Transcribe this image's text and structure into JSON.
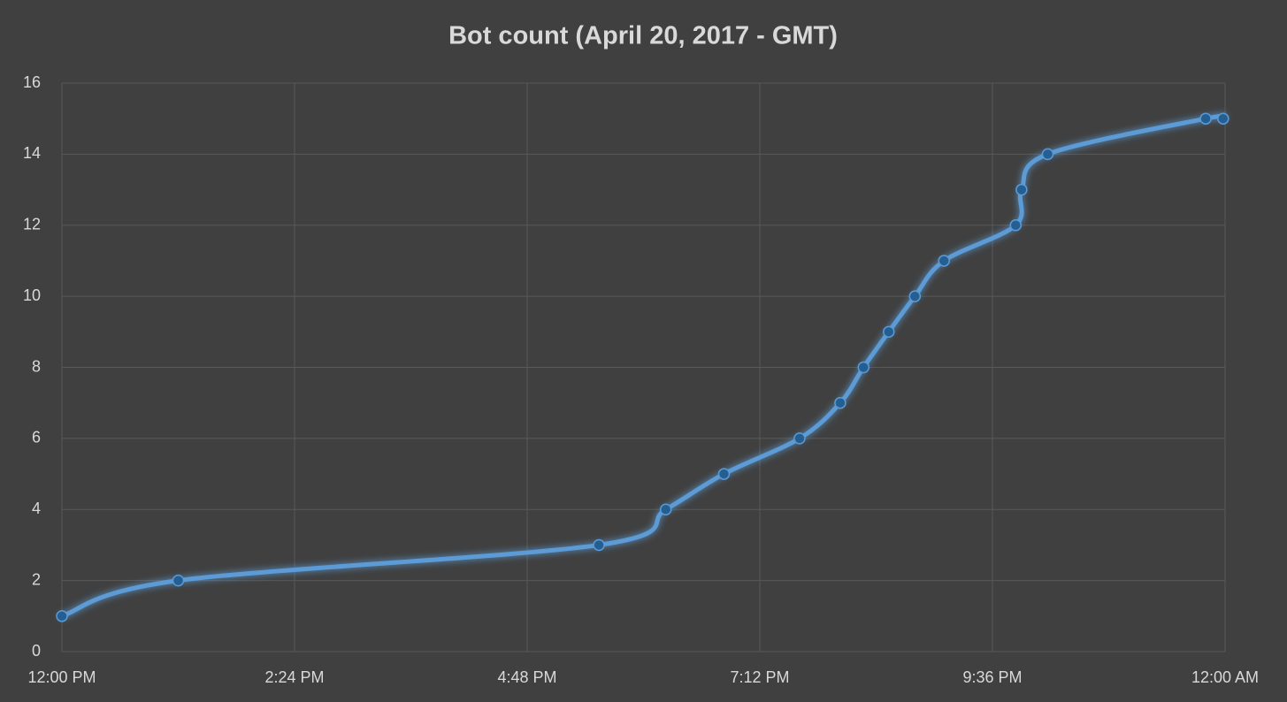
{
  "chart_data": {
    "type": "line",
    "title": "Bot count (April 20, 2017 - GMT)",
    "x": [
      12.0,
      13.2,
      17.54,
      18.23,
      18.83,
      19.61,
      20.03,
      20.27,
      20.53,
      20.8,
      21.1,
      21.84,
      21.9,
      22.17,
      23.8,
      23.98
    ],
    "series": [
      {
        "name": "Bot count",
        "color": "#5b9bd5",
        "values": [
          1,
          2,
          3,
          4,
          5,
          6,
          7,
          8,
          9,
          10,
          11,
          12,
          13,
          14,
          15,
          15
        ]
      }
    ],
    "xlim": [
      12,
      24
    ],
    "xticks": [
      {
        "value": 12,
        "label": "12:00 PM"
      },
      {
        "value": 14.4,
        "label": "2:24 PM"
      },
      {
        "value": 16.8,
        "label": "4:48 PM"
      },
      {
        "value": 19.2,
        "label": "7:12 PM"
      },
      {
        "value": 21.6,
        "label": "9:36 PM"
      },
      {
        "value": 24,
        "label": "12:00 AM"
      }
    ],
    "ylim": [
      0,
      16
    ],
    "yticks": [
      0,
      2,
      4,
      6,
      8,
      10,
      12,
      14,
      16
    ],
    "grid": true,
    "smooth": true
  }
}
